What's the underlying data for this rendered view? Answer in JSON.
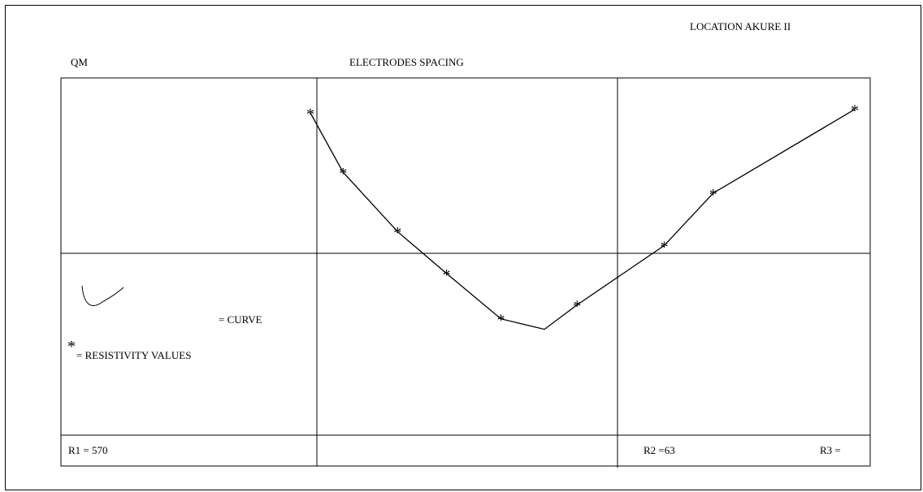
{
  "header": {
    "location": "LOCATION AKURE II",
    "left_label": "QM",
    "title": "ELECTRODES SPACING"
  },
  "legend": {
    "curve_label": "= CURVE",
    "star_symbol": "*",
    "values_label": "= RESISTIVITY VALUES"
  },
  "footer": {
    "r1": "R1 = 570",
    "r2": "R2 =63",
    "r3": "R3 ="
  },
  "chart_data": {
    "type": "line",
    "title": "ELECTRODES SPACING",
    "marker": "*",
    "line_color": "#000000",
    "series": [
      {
        "name": "RESISTIVITY VALUES",
        "values": [
          {
            "x": 0.0,
            "y": 0.9
          },
          {
            "x": 0.06,
            "y": 0.73
          },
          {
            "x": 0.16,
            "y": 0.56
          },
          {
            "x": 0.25,
            "y": 0.44
          },
          {
            "x": 0.35,
            "y": 0.31
          },
          {
            "x": 0.43,
            "y": 0.28,
            "marker": false
          },
          {
            "x": 0.49,
            "y": 0.35
          },
          {
            "x": 0.65,
            "y": 0.52
          },
          {
            "x": 0.74,
            "y": 0.67
          },
          {
            "x": 1.0,
            "y": 0.91
          }
        ]
      }
    ],
    "xlim": [
      0,
      1
    ],
    "ylim": [
      0,
      1
    ]
  }
}
